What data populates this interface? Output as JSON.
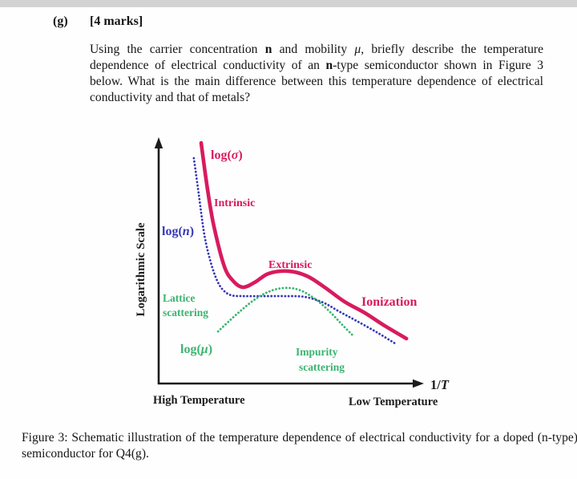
{
  "page": {
    "question_label": "(g)",
    "marks": "[4 marks]",
    "question_text": {
      "seg1": "Using the carrier concentration ",
      "seg2": "n",
      "seg3": " and mobility ",
      "seg4": "μ",
      "seg5": ", briefly describe the temperature dependence of electrical conductivity of an ",
      "seg6": "n",
      "seg7": "-type semiconductor shown in Figure 3 below. What is the main difference between this temperature dependence of electrical conductivity and that of metals?"
    },
    "caption": "Figure 3: Schematic illustration of the temperature dependence of electrical conductivity for a doped (n-type) semiconductor for Q4(g)."
  },
  "figure": {
    "y_axis_label": "Logarithmic Scale",
    "x_axis_label": {
      "pre": "1/",
      "sym": "T"
    },
    "high_temp": "High Temperature",
    "low_temp": "Low Temperature",
    "labels": {
      "sigma": {
        "pre": "log(",
        "sym": "σ",
        "post": ")"
      },
      "n": {
        "pre": "log(",
        "sym": "n",
        "post": ")"
      },
      "mu": {
        "pre": "log(",
        "sym": "μ",
        "post": ")"
      },
      "intrinsic": "Intrinsic",
      "extrinsic": "Extrinsic",
      "ionization": "Ionization",
      "lattice_line1": "Lattice",
      "lattice_line2": "scattering",
      "impurity_line1": "Impurity",
      "impurity_line2": "scattering"
    },
    "colors": {
      "sigma": "#d81b5e",
      "n": "#3636b8",
      "mu": "#3cb371",
      "axis": "#1c1c1c"
    }
  },
  "chart_data": {
    "type": "line",
    "title": "",
    "xlabel": "1/T",
    "ylabel": "Logarithmic Scale",
    "x_annotations": [
      "High Temperature (left)",
      "Low Temperature (right)"
    ],
    "axes_numeric": false,
    "grid": false,
    "legend_position": "inline-labels",
    "series": [
      {
        "name": "log(σ)",
        "color": "#d81b5e",
        "style": "solid",
        "region_annotations": [
          "Intrinsic",
          "Extrinsic",
          "Ionization"
        ],
        "points_rel": [
          [
            0.163,
            0.98
          ],
          [
            0.188,
            0.788
          ],
          [
            0.212,
            0.641
          ],
          [
            0.252,
            0.477
          ],
          [
            0.286,
            0.418
          ],
          [
            0.323,
            0.392
          ],
          [
            0.369,
            0.412
          ],
          [
            0.422,
            0.448
          ],
          [
            0.498,
            0.458
          ],
          [
            0.569,
            0.438
          ],
          [
            0.637,
            0.392
          ],
          [
            0.714,
            0.333
          ],
          [
            0.791,
            0.288
          ],
          [
            0.868,
            0.235
          ],
          [
            0.951,
            0.183
          ]
        ]
      },
      {
        "name": "log(n)",
        "color": "#3636b8",
        "style": "dotted",
        "region_annotations": [],
        "points_rel": [
          [
            0.135,
            0.918
          ],
          [
            0.154,
            0.771
          ],
          [
            0.175,
            0.608
          ],
          [
            0.2,
            0.493
          ],
          [
            0.225,
            0.418
          ],
          [
            0.249,
            0.379
          ],
          [
            0.28,
            0.359
          ],
          [
            0.329,
            0.356
          ],
          [
            0.406,
            0.356
          ],
          [
            0.483,
            0.356
          ],
          [
            0.56,
            0.353
          ],
          [
            0.631,
            0.33
          ],
          [
            0.692,
            0.294
          ],
          [
            0.76,
            0.255
          ],
          [
            0.837,
            0.209
          ],
          [
            0.908,
            0.163
          ]
        ]
      },
      {
        "name": "log(μ)",
        "color": "#3cb371",
        "style": "dotted",
        "region_annotations": [
          "Lattice scattering",
          "Impurity scattering"
        ],
        "points_rel": [
          [
            0.228,
            0.212
          ],
          [
            0.274,
            0.258
          ],
          [
            0.32,
            0.301
          ],
          [
            0.366,
            0.34
          ],
          [
            0.412,
            0.369
          ],
          [
            0.458,
            0.386
          ],
          [
            0.505,
            0.389
          ],
          [
            0.545,
            0.379
          ],
          [
            0.585,
            0.356
          ],
          [
            0.625,
            0.324
          ],
          [
            0.665,
            0.284
          ],
          [
            0.705,
            0.239
          ],
          [
            0.751,
            0.19
          ]
        ]
      }
    ]
  }
}
